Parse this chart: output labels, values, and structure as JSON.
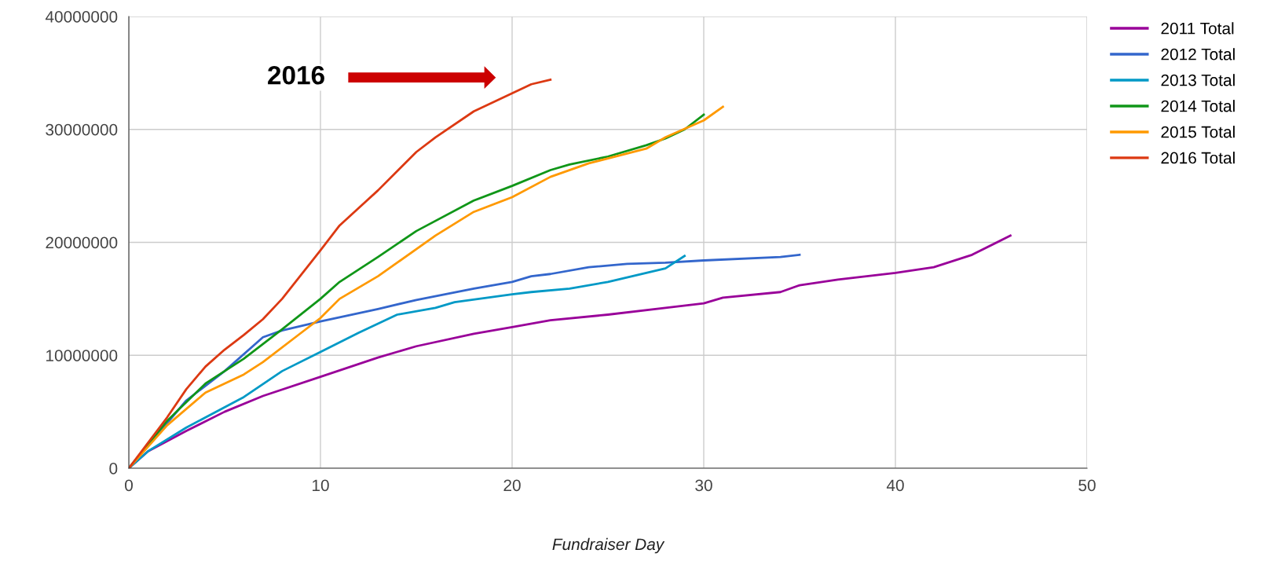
{
  "chart_data": {
    "type": "line",
    "xlabel": "Fundraiser Day",
    "xlim": [
      0,
      50
    ],
    "xticks": [
      0,
      10,
      20,
      30,
      40,
      50
    ],
    "ylim": [
      0,
      40000000
    ],
    "yticks": [
      0,
      10000000,
      20000000,
      30000000,
      40000000
    ],
    "grid": true,
    "legend": "top right",
    "line_style": "solid",
    "annotations": [
      "2016"
    ],
    "series": [
      {
        "name": "2011 Total",
        "color": "#990099",
        "x": [
          0,
          1,
          3,
          5,
          7,
          10,
          13,
          15,
          18,
          20,
          22,
          25,
          28,
          30,
          31,
          34,
          35,
          37,
          40,
          42,
          44,
          46
        ],
        "values": [
          0,
          1500000,
          3300000,
          5000000,
          6400000,
          8100000,
          9800000,
          10800000,
          11900000,
          12500000,
          13100000,
          13600000,
          14200000,
          14600000,
          15100000,
          15600000,
          16200000,
          16700000,
          17300000,
          17800000,
          18900000,
          20600000
        ]
      },
      {
        "name": "2012 Total",
        "color": "#3366cc",
        "x": [
          0,
          2,
          3,
          5,
          7,
          8,
          10,
          13,
          15,
          18,
          20,
          21,
          22,
          24,
          26,
          28,
          30,
          34,
          35
        ],
        "values": [
          0,
          4000000,
          6000000,
          8600000,
          11600000,
          12200000,
          13000000,
          14100000,
          14900000,
          15900000,
          16500000,
          17000000,
          17200000,
          17800000,
          18100000,
          18200000,
          18400000,
          18700000,
          18900000
        ]
      },
      {
        "name": "2013 Total",
        "color": "#0099c6",
        "x": [
          0,
          1,
          3,
          6,
          8,
          10,
          12,
          14,
          16,
          17,
          20,
          21,
          23,
          25,
          27,
          28,
          29
        ],
        "values": [
          0,
          1500000,
          3600000,
          6300000,
          8600000,
          10300000,
          12000000,
          13600000,
          14200000,
          14700000,
          15400000,
          15600000,
          15900000,
          16500000,
          17300000,
          17700000,
          18800000
        ]
      },
      {
        "name": "2014 Total",
        "color": "#109618",
        "x": [
          0,
          2,
          4,
          6,
          8,
          10,
          11,
          13,
          15,
          18,
          20,
          22,
          23,
          25,
          27,
          28,
          29,
          30
        ],
        "values": [
          0,
          4200000,
          7500000,
          9700000,
          12300000,
          15000000,
          16500000,
          18700000,
          21000000,
          23700000,
          25000000,
          26400000,
          26900000,
          27600000,
          28600000,
          29200000,
          30000000,
          31300000
        ]
      },
      {
        "name": "2015 Total",
        "color": "#ff9900",
        "x": [
          0,
          2,
          4,
          6,
          7,
          9,
          10,
          11,
          13,
          14,
          16,
          18,
          20,
          22,
          24,
          27,
          28,
          30,
          31
        ],
        "values": [
          0,
          3800000,
          6700000,
          8300000,
          9400000,
          12000000,
          13300000,
          15000000,
          17000000,
          18200000,
          20600000,
          22700000,
          24000000,
          25800000,
          27000000,
          28300000,
          29300000,
          30800000,
          32000000
        ]
      },
      {
        "name": "2016 Total",
        "color": "#dc3912",
        "x": [
          0,
          2,
          3,
          4,
          5,
          6,
          7,
          8,
          10,
          11,
          13,
          15,
          16,
          18,
          20,
          21,
          22
        ],
        "values": [
          0,
          4500000,
          7000000,
          9000000,
          10500000,
          11800000,
          13200000,
          15000000,
          19300000,
          21500000,
          24600000,
          28000000,
          29300000,
          31600000,
          33200000,
          34000000,
          34400000
        ]
      }
    ]
  }
}
